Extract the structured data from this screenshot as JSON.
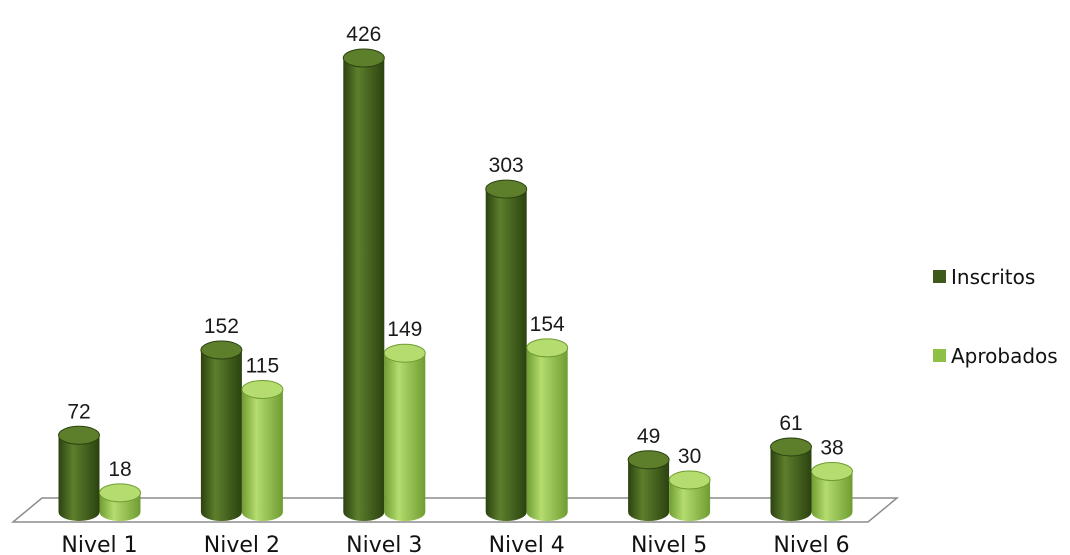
{
  "chart_data": {
    "type": "bar",
    "categories": [
      "Nivel 1",
      "Nivel 2",
      "Nivel 3",
      "Nivel 4",
      "Nivel 5",
      "Nivel 6"
    ],
    "series": [
      {
        "name": "Inscritos",
        "values": [
          72,
          152,
          426,
          303,
          49,
          61
        ],
        "color": "#3d5a1a",
        "color_light": "#5d7f2c",
        "color_dark": "#2b4210"
      },
      {
        "name": "Aprobados",
        "values": [
          18,
          115,
          149,
          154,
          30,
          38
        ],
        "color": "#8fbf45",
        "color_light": "#b4dc6e",
        "color_dark": "#6f9c32"
      }
    ],
    "title": "",
    "xlabel": "",
    "ylabel": "",
    "ylim": [
      0,
      426
    ],
    "grid": false,
    "legend": "right",
    "data_labels": true,
    "style": "3d-cylinder"
  }
}
